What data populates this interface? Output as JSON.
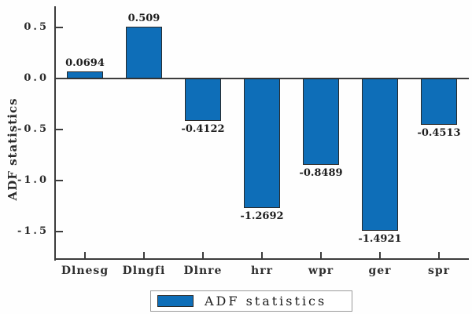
{
  "chart_data": {
    "type": "bar",
    "title": "",
    "categories": [
      "Dlnesg",
      "Dlngfi",
      "Dlnre",
      "hrr",
      "wpr",
      "ger",
      "spr"
    ],
    "values": [
      0.0694,
      0.509,
      -0.4122,
      -1.2692,
      -0.8489,
      -1.4921,
      -0.4513
    ],
    "value_labels": [
      "0.0694",
      "0.509",
      "-0.4122",
      "-1.2692",
      "-0.8489",
      "-1.4921",
      "-0.4513"
    ],
    "xlabel": "",
    "ylabel": "ADF statistics",
    "y_ticks": [
      "0.5",
      "0.0",
      "-0.5",
      "-1.0",
      "-1.5"
    ],
    "y_tick_values": [
      0.5,
      0.0,
      -0.5,
      -1.0,
      -1.5
    ],
    "ylim": [
      -1.75,
      0.72
    ],
    "grid": false,
    "legend": {
      "label": "ADF statistics",
      "position": "bottom-center"
    },
    "colors": {
      "bar_fill": "#0e6eb8",
      "bar_border": "#2a2a2a",
      "axis": "#3c3c3c",
      "text": "#2b2b2b",
      "legend_border": "#9a9a9a",
      "background": "#fefefe"
    }
  }
}
